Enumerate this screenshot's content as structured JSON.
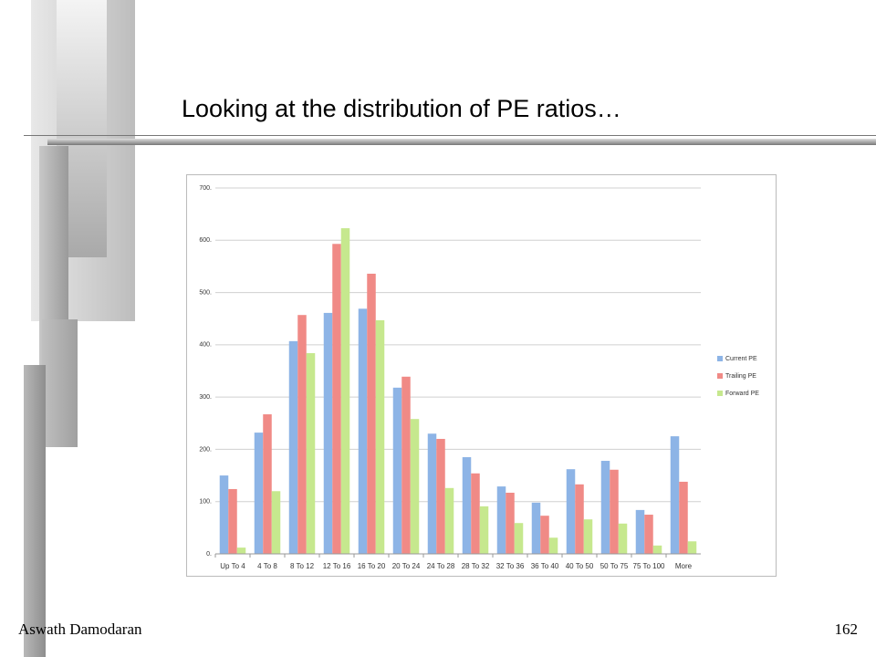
{
  "title": "Looking at the distribution of PE ratios…",
  "footer": {
    "author": "Aswath Damodaran",
    "page": 162
  },
  "chart_data": {
    "type": "bar",
    "categories": [
      "Up To 4",
      "4 To 8",
      "8 To 12",
      "12 To 16",
      "16 To 20",
      "20 To 24",
      "24 To 28",
      "28 To 32",
      "32 To 36",
      "36 To 40",
      "40 To 50",
      "50 To 75",
      "75 To 100",
      "More"
    ],
    "series": [
      {
        "name": "Current PE",
        "color": "#8db4e6",
        "values": [
          150,
          232,
          407,
          461,
          469,
          318,
          230,
          185,
          129,
          98,
          162,
          178,
          84,
          225
        ]
      },
      {
        "name": "Trailing PE",
        "color": "#f08a86",
        "values": [
          124,
          267,
          457,
          593,
          536,
          339,
          220,
          154,
          117,
          73,
          133,
          161,
          75,
          138
        ]
      },
      {
        "name": "Forward PE",
        "color": "#c6e88e",
        "values": [
          12,
          120,
          384,
          623,
          447,
          258,
          126,
          91,
          59,
          31,
          66,
          58,
          16,
          24
        ]
      }
    ],
    "ylim": [
      0,
      700
    ],
    "yticks": [
      {
        "value": 0,
        "label": "0."
      },
      {
        "value": 100,
        "label": "100."
      },
      {
        "value": 200,
        "label": "200."
      },
      {
        "value": 300,
        "label": "300."
      },
      {
        "value": 400,
        "label": "400."
      },
      {
        "value": 500,
        "label": "500."
      },
      {
        "value": 600,
        "label": "600."
      },
      {
        "value": 700,
        "label": "700."
      }
    ],
    "grid": true,
    "legend": "right"
  }
}
